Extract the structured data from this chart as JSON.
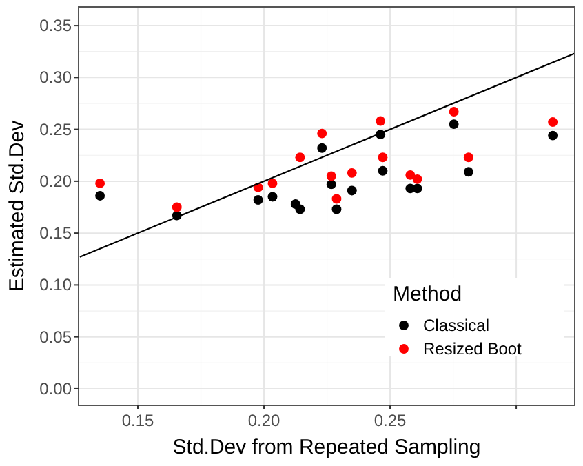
{
  "chart_data": {
    "type": "scatter",
    "xlabel": "Std.Dev from Repeated Sampling",
    "ylabel": "Estimated Std.Dev",
    "legend_title": "Method",
    "x": [
      0.135,
      0.1655,
      0.1977,
      0.2034,
      0.2125,
      0.2143,
      0.223,
      0.2267,
      0.2288,
      0.2349,
      0.2462,
      0.2471,
      0.258,
      0.2608,
      0.2753,
      0.2811,
      0.3145
    ],
    "series": [
      {
        "name": "Classical",
        "color": "#000000",
        "values": [
          0.186,
          0.167,
          0.182,
          0.185,
          0.178,
          0.173,
          0.232,
          0.197,
          0.173,
          0.191,
          0.245,
          0.21,
          0.193,
          0.193,
          0.255,
          0.209,
          0.244
        ]
      },
      {
        "name": "Resized Boot",
        "color": "#ff0000",
        "values": [
          0.198,
          0.175,
          0.194,
          0.198,
          null,
          0.223,
          0.246,
          0.205,
          0.183,
          0.208,
          0.258,
          0.223,
          0.206,
          0.202,
          0.267,
          0.223,
          0.257
        ]
      },
      {
        "type": "line",
        "color": "#000000",
        "marker": "none",
        "x": [
          0.127,
          0.323
        ],
        "values": [
          0.127,
          0.323
        ]
      }
    ],
    "xlim": [
      0.1265,
      0.3232
    ],
    "ylim": [
      -0.016,
      0.368
    ],
    "xticks": [
      {
        "value": 0.15,
        "label": "0.15"
      },
      {
        "value": 0.2,
        "label": "0.20"
      },
      {
        "value": 0.25,
        "label": "0.25"
      },
      {
        "value": 0.3,
        "label": null
      }
    ],
    "yticks": [
      {
        "value": 0,
        "label": "0.00"
      },
      {
        "value": 0.05,
        "label": "0.05"
      },
      {
        "value": 0.1,
        "label": "0.10"
      },
      {
        "value": 0.15,
        "label": "0.15"
      },
      {
        "value": 0.2,
        "label": "0.20"
      },
      {
        "value": 0.25,
        "label": "0.25"
      },
      {
        "value": 0.3,
        "label": "0.30"
      },
      {
        "value": 0.35,
        "label": "0.35"
      }
    ],
    "grid": true,
    "legend": "bottom right",
    "marker": "circle",
    "line_style": "solid"
  }
}
